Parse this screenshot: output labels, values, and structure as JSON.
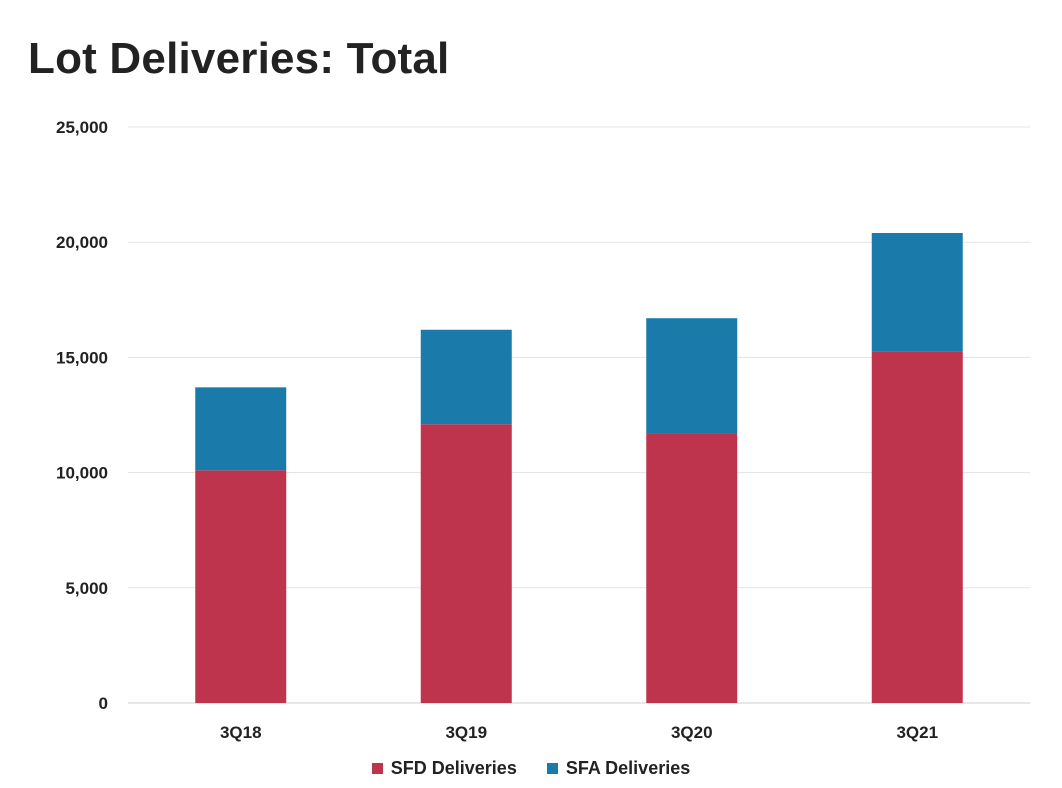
{
  "chart_data": {
    "type": "bar",
    "stacked": true,
    "title": "Lot Deliveries: Total",
    "xlabel": "",
    "ylabel": "",
    "categories": [
      "3Q18",
      "3Q19",
      "3Q20",
      "3Q21"
    ],
    "series": [
      {
        "name": "SFD Deliveries",
        "color": "#BE344D",
        "values": [
          10100,
          12100,
          11700,
          15250
        ]
      },
      {
        "name": "SFA Deliveries",
        "color": "#1A7AAA",
        "values": [
          3600,
          4100,
          5000,
          5150
        ]
      }
    ],
    "ylim": [
      0,
      25000
    ],
    "yticks": [
      0,
      5000,
      10000,
      15000,
      20000,
      25000
    ],
    "ytick_labels": [
      "0",
      "5,000",
      "10,000",
      "15,000",
      "20,000",
      "25,000"
    ],
    "grid": true,
    "legend_position": "bottom-center"
  }
}
